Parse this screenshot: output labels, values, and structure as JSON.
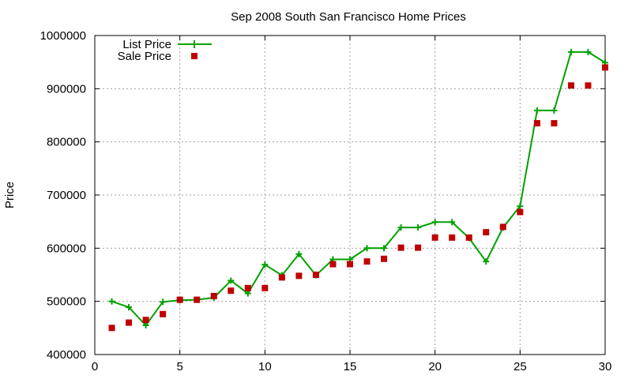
{
  "chart_data": {
    "type": "line",
    "title": "Sep 2008 South San Francisco Home Prices",
    "xlabel": "",
    "ylabel": "Price",
    "xlim": [
      0,
      30
    ],
    "ylim": [
      400000,
      1000000
    ],
    "xticks": [
      "0",
      "5",
      "10",
      "15",
      "20",
      "25",
      "30"
    ],
    "yticks": [
      "400000",
      "500000",
      "600000",
      "700000",
      "800000",
      "900000",
      "1000000"
    ],
    "grid": true,
    "legend_position": "top-left",
    "x": [
      1,
      2,
      3,
      4,
      5,
      6,
      7,
      8,
      9,
      10,
      11,
      12,
      13,
      14,
      15,
      16,
      17,
      18,
      19,
      20,
      21,
      22,
      23,
      24,
      25,
      26,
      27,
      28,
      29,
      30
    ],
    "series": [
      {
        "name": "List Price",
        "style": "line-plus",
        "color": "#00a000",
        "values": [
          499950,
          489000,
          455000,
          499000,
          502000,
          503000,
          507000,
          539000,
          515000,
          569000,
          549000,
          589000,
          549000,
          579000,
          579000,
          600000,
          600000,
          639000,
          639000,
          649000,
          649000,
          619000,
          575000,
          639000,
          679000,
          859000,
          859000,
          969000,
          969000,
          949000
        ]
      },
      {
        "name": "Sale Price",
        "style": "square-points",
        "color": "#c00000",
        "values": [
          450000,
          460000,
          465000,
          476000,
          503000,
          503000,
          510000,
          520000,
          525000,
          525000,
          545000,
          548000,
          550000,
          570000,
          570000,
          575000,
          580000,
          601000,
          601000,
          620000,
          620000,
          620000,
          630000,
          640000,
          668000,
          835000,
          835000,
          906000,
          906000,
          940000
        ]
      }
    ]
  }
}
